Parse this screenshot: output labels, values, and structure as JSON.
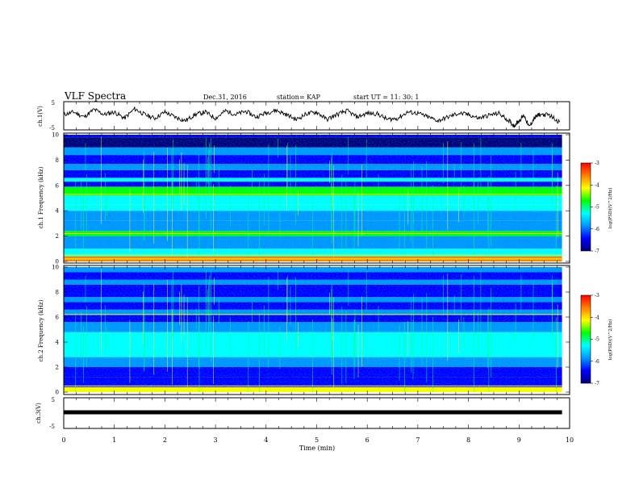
{
  "header": {
    "title": "VLF Spectra",
    "date": "Dec.31, 2016",
    "station": "station= KAP",
    "start": "start  UT =   11: 30: 1"
  },
  "colors": {
    "background": "#ffffff",
    "axis": "#000000",
    "colormap": [
      "#00007a",
      "#0000ff",
      "#0096ff",
      "#00ffff",
      "#00ff00",
      "#ffff00",
      "#ff8000",
      "#ff0000"
    ]
  },
  "chart_data": [
    {
      "type": "line",
      "ylabel": "ch.1(V)",
      "xlim": [
        0,
        10
      ],
      "ylim": [
        -5,
        5
      ],
      "yticks": [
        "5",
        "-5"
      ],
      "series": [
        {
          "x": [
            0,
            0.2,
            0.4,
            0.6,
            0.8,
            1.0,
            1.2,
            1.4,
            1.6,
            1.8,
            2.0,
            2.2,
            2.4,
            2.6,
            2.8,
            3.0,
            3.2,
            3.4,
            3.6,
            3.8,
            4.0,
            4.2,
            4.4,
            4.6,
            4.8,
            5.0,
            5.2,
            5.4,
            5.6,
            5.8,
            6.0,
            6.2,
            6.4,
            6.6,
            6.8,
            7.0,
            7.2,
            7.4,
            7.6,
            7.8,
            8.0,
            8.2,
            8.4,
            8.6,
            8.8,
            8.9,
            9.0,
            9.1,
            9.2,
            9.3,
            9.4,
            9.6,
            9.8
          ],
          "values": [
            0.5,
            1.5,
            -0.5,
            2.5,
            0.5,
            1.5,
            -1.0,
            2.8,
            0.5,
            -1.0,
            1.5,
            -0.5,
            -2.0,
            0.5,
            1.5,
            -1.0,
            2.0,
            0.5,
            1.8,
            -0.5,
            1.2,
            2.2,
            0.5,
            -1.5,
            0.8,
            1.5,
            -1.5,
            0.5,
            2.0,
            -0.5,
            1.0,
            0.8,
            -1.5,
            -1.0,
            1.5,
            1.0,
            -0.5,
            -2.0,
            -0.5,
            1.0,
            0.5,
            -1.0,
            0.2,
            1.0,
            -2.0,
            -4.0,
            -2.0,
            0.3,
            -4.5,
            -1.0,
            0.5,
            0.3,
            -2.5
          ]
        }
      ]
    },
    {
      "type": "heatmap",
      "ylabel": "ch.1 Frequency (kHz)",
      "xlim": [
        0,
        10
      ],
      "ylim": [
        0,
        10
      ],
      "yticks": [
        "0",
        "2",
        "4",
        "6",
        "8",
        "10"
      ],
      "colorbar": {
        "label": "log(PSD)(V^2/Hz)",
        "range": [
          -7,
          -3
        ],
        "ticks": [
          "-3",
          "-4",
          "-5",
          "-6",
          "-7"
        ]
      },
      "bands": [
        {
          "from": 0.0,
          "to": 0.4,
          "level": -3.8
        },
        {
          "from": 0.4,
          "to": 1.0,
          "level": -5.2
        },
        {
          "from": 1.0,
          "to": 2.0,
          "level": -5.8
        },
        {
          "from": 2.0,
          "to": 2.4,
          "level": -4.6
        },
        {
          "from": 2.4,
          "to": 3.2,
          "level": -5.6
        },
        {
          "from": 3.2,
          "to": 4.0,
          "level": -6.0
        },
        {
          "from": 4.0,
          "to": 4.5,
          "level": -5.4
        },
        {
          "from": 4.5,
          "to": 5.2,
          "level": -5.2
        },
        {
          "from": 5.2,
          "to": 5.9,
          "level": -5.0
        },
        {
          "from": 5.9,
          "to": 6.3,
          "level": -6.6
        },
        {
          "from": 6.3,
          "to": 6.6,
          "level": -5.4
        },
        {
          "from": 6.6,
          "to": 7.2,
          "level": -6.4
        },
        {
          "from": 7.2,
          "to": 7.7,
          "level": -5.9
        },
        {
          "from": 7.7,
          "to": 8.4,
          "level": -6.6
        },
        {
          "from": 8.4,
          "to": 9.0,
          "level": -5.9
        },
        {
          "from": 9.0,
          "to": 9.8,
          "level": -6.8
        },
        {
          "from": 9.8,
          "to": 10.0,
          "level": -6.2
        }
      ],
      "lines_khz": [
        0.2,
        0.5,
        2.2,
        5.3
      ],
      "lines_level": -4.0
    },
    {
      "type": "heatmap",
      "ylabel": "ch.2 Frequency (kHz)",
      "xlim": [
        0,
        10
      ],
      "ylim": [
        0,
        10
      ],
      "yticks": [
        "0",
        "2",
        "4",
        "6",
        "8",
        "10"
      ],
      "colorbar": {
        "label": "log(PSD)(V^2/Hz)",
        "range": [
          -7,
          -3
        ],
        "ticks": [
          "-3",
          "-4",
          "-5",
          "-6",
          "-7"
        ]
      },
      "bands": [
        {
          "from": 0.0,
          "to": 0.4,
          "level": -4.2
        },
        {
          "from": 0.4,
          "to": 1.2,
          "level": -6.4
        },
        {
          "from": 1.2,
          "to": 2.0,
          "level": -6.6
        },
        {
          "from": 2.0,
          "to": 2.8,
          "level": -5.6
        },
        {
          "from": 2.8,
          "to": 4.8,
          "level": -5.1
        },
        {
          "from": 4.8,
          "to": 5.6,
          "level": -5.8
        },
        {
          "from": 5.6,
          "to": 6.2,
          "level": -6.5
        },
        {
          "from": 6.2,
          "to": 6.6,
          "level": -5.8
        },
        {
          "from": 6.6,
          "to": 7.2,
          "level": -6.6
        },
        {
          "from": 7.2,
          "to": 7.6,
          "level": -5.6
        },
        {
          "from": 7.6,
          "to": 8.6,
          "level": -6.3
        },
        {
          "from": 8.6,
          "to": 9.0,
          "level": -5.6
        },
        {
          "from": 9.0,
          "to": 9.6,
          "level": -6.4
        },
        {
          "from": 9.6,
          "to": 10.0,
          "level": -6.1
        }
      ],
      "lines_khz": [
        0.2,
        0.5,
        6.2
      ],
      "lines_level": -4.0
    },
    {
      "type": "line",
      "ylabel": "ch.3(V)",
      "xlabel": "Time (min)",
      "xlim": [
        0,
        10
      ],
      "ylim": [
        -5,
        5
      ],
      "yticks": [
        "5",
        "-5"
      ],
      "xticks": [
        "0",
        "1",
        "2",
        "3",
        "4",
        "5",
        "6",
        "7",
        "8",
        "9",
        "10"
      ],
      "series": [
        {
          "x": [
            0,
            9.85
          ],
          "values": [
            0,
            0
          ]
        }
      ]
    }
  ]
}
